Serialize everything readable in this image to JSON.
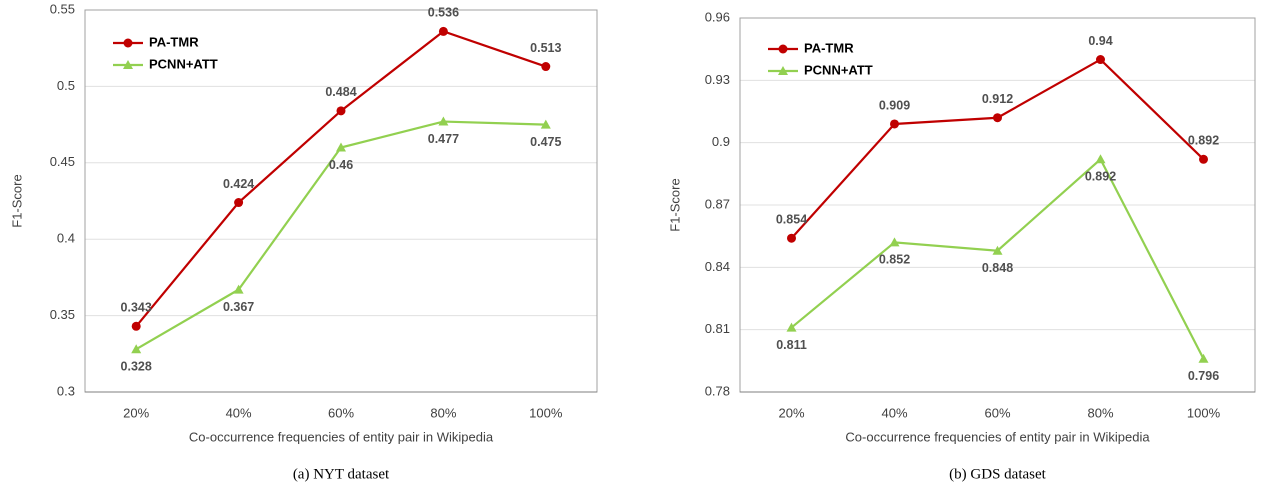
{
  "chart_data": [
    {
      "type": "line",
      "caption": "(a)  NYT dataset",
      "y_label": "F1-Score",
      "x_label": "Co-occurrence frequencies of entity pair in Wikipedia",
      "categories": [
        "20%",
        "40%",
        "60%",
        "80%",
        "100%"
      ],
      "ylim": [
        0.3,
        0.55
      ],
      "yticks": [
        0.3,
        0.35,
        0.4,
        0.45,
        0.5,
        0.55
      ],
      "grid": true,
      "legend": "upper left",
      "series": [
        {
          "name": "PA-TMR",
          "color": "#c00000",
          "marker": "circle",
          "values": [
            0.343,
            0.424,
            0.484,
            0.536,
            0.513
          ]
        },
        {
          "name": "PCNN+ATT",
          "color": "#92d050",
          "marker": "triangle",
          "values": [
            0.328,
            0.367,
            0.46,
            0.477,
            0.475
          ]
        }
      ]
    },
    {
      "type": "line",
      "caption": "(b)  GDS dataset",
      "y_label": "F1-Score",
      "x_label": "Co-occurrence frequencies of entity pair in Wikipedia",
      "categories": [
        "20%",
        "40%",
        "60%",
        "80%",
        "100%"
      ],
      "ylim": [
        0.78,
        0.96
      ],
      "yticks": [
        0.78,
        0.81,
        0.84,
        0.87,
        0.9,
        0.93,
        0.96
      ],
      "grid": true,
      "legend": "upper left",
      "series": [
        {
          "name": "PA-TMR",
          "color": "#c00000",
          "marker": "circle",
          "values": [
            0.854,
            0.909,
            0.912,
            0.94,
            0.892
          ]
        },
        {
          "name": "PCNN+ATT",
          "color": "#92d050",
          "marker": "triangle",
          "values": [
            0.811,
            0.852,
            0.848,
            0.892,
            0.796
          ]
        }
      ]
    }
  ]
}
